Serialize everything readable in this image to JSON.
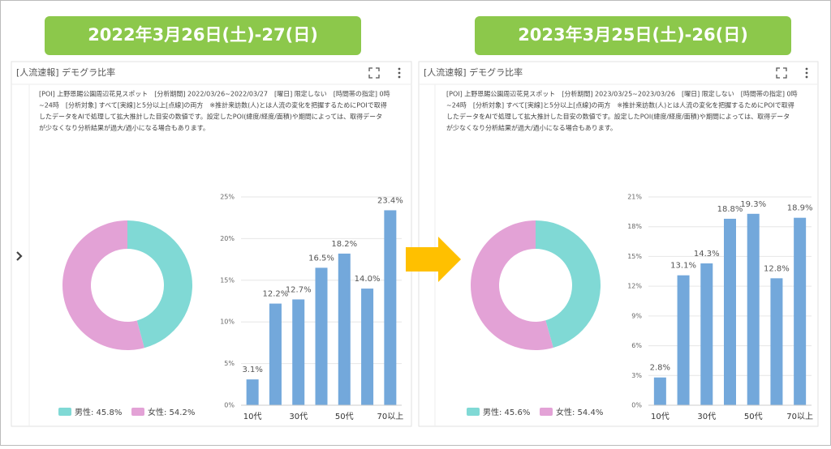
{
  "panels": [
    {
      "banner": "2022年3月26日(土)-27(日)",
      "title": "[人流速報] デモグラ比率",
      "description": [
        "[POI] 上野恩賜公園周辺花見スポット　[分析期間] 2022/03/26~2022/03/27　[曜日] 限定しない　[時間帯の指定] 0時",
        "~24時　[分析対象] すべて[実線]と5分以上[点線]の両方　※推計来訪数(人)とは人流の変化を把握するためにPOIで取得",
        "したデータをAIで処理して拡大推計した目安の数値です。設定したPOI(緯度/経度/面積)や期間によっては、取得データ",
        "が少なくなり分析結果が過大/過小になる場合もあります。"
      ]
    },
    {
      "banner": "2023年3月25日(土)-26(日)",
      "title": "[人流速報] デモグラ比率",
      "description": [
        "[POI] 上野恩賜公園周辺花見スポット　[分析期間] 2023/03/25~2023/03/26　[曜日] 限定しない　[時間帯の指定] 0時",
        "~24時　[分析対象] すべて[実線]と5分以上[点線]の両方　※推計来訪数(人)とは人流の変化を把握するためにPOIで取得",
        "したデータをAIで処理して拡大推計した目安の数値です。設定したPOI(緯度/経度/面積)や期間によっては、取得データ",
        "が少なくなり分析結果が過大/過小になる場合もあります。"
      ]
    }
  ],
  "chart_data": [
    {
      "type": "pie",
      "donut": true,
      "categories": [
        "男性",
        "女性"
      ],
      "values": [
        45.8,
        54.2
      ],
      "value_labels": [
        "男性: 45.8%",
        "女性: 54.2%"
      ],
      "colors": [
        "#80d9d5",
        "#e3a2d6"
      ]
    },
    {
      "type": "bar",
      "categories": [
        "10代",
        null,
        "30代",
        null,
        "50代",
        null,
        "70以上"
      ],
      "values": [
        3.1,
        12.2,
        12.7,
        16.5,
        18.2,
        14.0,
        23.4
      ],
      "value_labels": [
        "3.1%",
        "12.2%",
        "12.7%",
        "16.5%",
        "18.2%",
        "14.0%",
        "23.4%"
      ],
      "color": "#73a8db",
      "ylim": [
        0,
        25
      ],
      "yticks": [
        {
          "value": 0,
          "label": "0%"
        },
        {
          "value": 5,
          "label": "5%"
        },
        {
          "value": 10,
          "label": "10%"
        },
        {
          "value": 15,
          "label": "15%"
        },
        {
          "value": 20,
          "label": "20%"
        },
        {
          "value": 25,
          "label": "25%"
        }
      ],
      "grid": true
    },
    {
      "type": "pie",
      "donut": true,
      "categories": [
        "男性",
        "女性"
      ],
      "values": [
        45.6,
        54.4
      ],
      "value_labels": [
        "男性: 45.6%",
        "女性: 54.4%"
      ],
      "colors": [
        "#80d9d5",
        "#e3a2d6"
      ]
    },
    {
      "type": "bar",
      "categories": [
        "10代",
        null,
        "30代",
        null,
        "50代",
        null,
        "70以上"
      ],
      "values": [
        2.8,
        13.1,
        14.3,
        18.8,
        19.3,
        12.8,
        18.9
      ],
      "value_labels": [
        "2.8%",
        "13.1%",
        "14.3%",
        "18.8%",
        "19.3%",
        "12.8%",
        "18.9%"
      ],
      "color": "#73a8db",
      "ylim": [
        0,
        21
      ],
      "yticks": [
        {
          "value": 0,
          "label": "0%"
        },
        {
          "value": 3,
          "label": "3%"
        },
        {
          "value": 6,
          "label": "6%"
        },
        {
          "value": 9,
          "label": "9%"
        },
        {
          "value": 12,
          "label": "12%"
        },
        {
          "value": 15,
          "label": "15%"
        },
        {
          "value": 18,
          "label": "18%"
        },
        {
          "value": 21,
          "label": "21%"
        }
      ],
      "grid": true
    }
  ]
}
